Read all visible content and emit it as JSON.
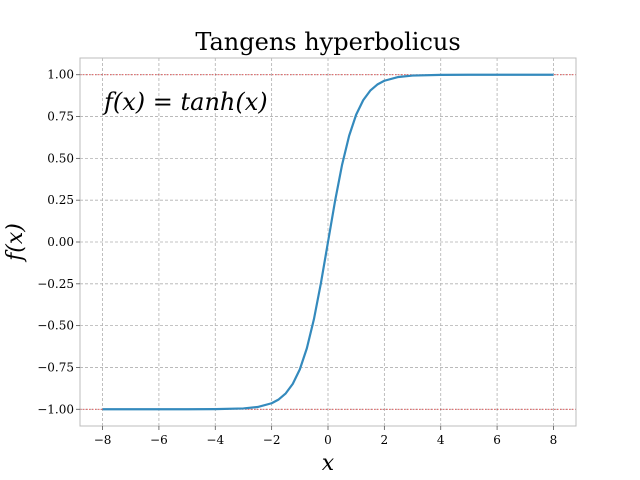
{
  "chart_data": {
    "type": "line",
    "title": "Tangens hyperbolicus",
    "xlabel": "x",
    "ylabel": "f(x)",
    "annotation": "f(x) = tanh(x)",
    "xlim": [
      -8.8,
      8.8
    ],
    "ylim": [
      -1.1,
      1.1
    ],
    "xticks": [
      -8,
      -6,
      -4,
      -2,
      0,
      2,
      4,
      6,
      8
    ],
    "xtick_labels": [
      "−8",
      "−6",
      "−4",
      "−2",
      "0",
      "2",
      "4",
      "6",
      "8"
    ],
    "yticks": [
      -1.0,
      -0.75,
      -0.5,
      -0.25,
      0.0,
      0.25,
      0.5,
      0.75,
      1.0
    ],
    "ytick_labels": [
      "−1.00",
      "−0.75",
      "−0.50",
      "−0.25",
      "0.00",
      "0.25",
      "0.50",
      "0.75",
      "1.00"
    ],
    "grid": true,
    "reference_lines": [
      {
        "y": 1.0,
        "color": "#d62728",
        "style": "dotted"
      },
      {
        "y": -1.0,
        "color": "#d62728",
        "style": "dotted"
      }
    ],
    "series": [
      {
        "color": "#348abd",
        "x": [
          -8,
          -7,
          -6,
          -5,
          -4,
          -3,
          -2.5,
          -2,
          -1.75,
          -1.5,
          -1.25,
          -1,
          -0.75,
          -0.5,
          -0.25,
          0,
          0.25,
          0.5,
          0.75,
          1,
          1.25,
          1.5,
          1.75,
          2,
          2.5,
          3,
          4,
          5,
          6,
          7,
          8
        ],
        "y": [
          -1.0,
          -1.0,
          -1.0,
          -0.9999,
          -0.9993,
          -0.9951,
          -0.9866,
          -0.964,
          -0.9414,
          -0.9051,
          -0.8483,
          -0.7616,
          -0.6351,
          -0.4621,
          -0.2449,
          0.0,
          0.2449,
          0.4621,
          0.6351,
          0.7616,
          0.8483,
          0.9051,
          0.9414,
          0.964,
          0.9866,
          0.9951,
          0.9993,
          0.9999,
          1.0,
          1.0,
          1.0
        ]
      }
    ],
    "colors": {
      "axes_edge": "#bcbcbc",
      "background": "#ffffff"
    }
  }
}
